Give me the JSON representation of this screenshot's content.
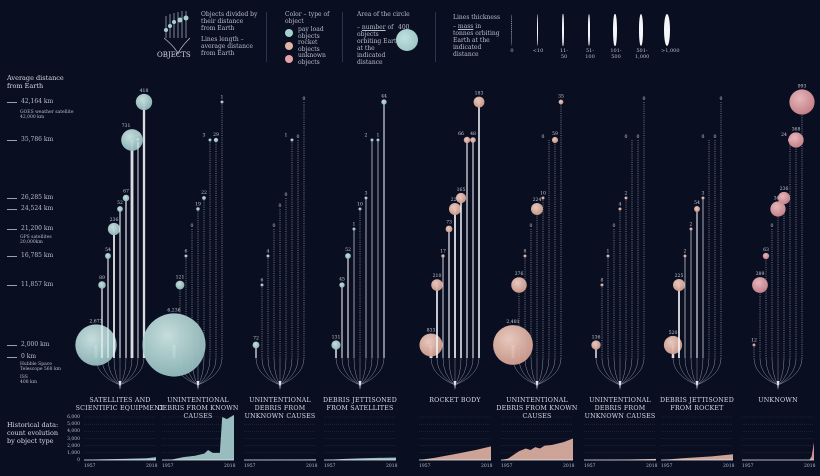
{
  "legend": {
    "objects_title": "OBJECTS",
    "objects_divided": "Objects divided by their distance from Earth",
    "lines_length": "Lines length – average distance from Earth",
    "color_title": "Color – type of object",
    "color_items": [
      {
        "label": "pay load objects",
        "color": "#a8cfd0"
      },
      {
        "label": "rocket objects",
        "color": "#e2b4a4"
      },
      {
        "label": "unknown objects",
        "color": "#e3a2a8"
      }
    ],
    "area_title": "Area of the circle",
    "area_text_number": "number",
    "area_text_rest": "of objects orbiting Earth at the indicated distance",
    "area_value": "400",
    "thickness_title": "Lines thickness",
    "thickness_mass": "mass",
    "thickness_rest": "in tonnes orbiting Earth at the indicated distance",
    "thickness_classes": [
      "0",
      "<10",
      "11-50",
      "51-100",
      "101-500",
      "501-1,000",
      ">1,000"
    ]
  },
  "y_axis": {
    "title": "Average distance from Earth",
    "ticks": [
      "42,164 km",
      "35,786 km",
      "26,285 km",
      "24,524 km",
      "21,200 km",
      "16,785 km",
      "11,857 km",
      "2,000 km",
      "0 km"
    ],
    "annotations": [
      {
        "label": "GOES weather satellite",
        "value": "42,000 km"
      },
      {
        "label": "GPS satellites",
        "value": "20,000km"
      },
      {
        "label": "Hubble Space Telescope 568 km"
      },
      {
        "label": "ISS",
        "value": "408 km"
      }
    ]
  },
  "groups": [
    {
      "name": "SATELLITES AND SCIENTIFIC EQUIPMENT",
      "kind": "payload",
      "counts": [
        2673,
        89,
        54,
        236,
        52,
        67,
        731,
        28,
        418
      ],
      "solid": [
        1,
        1,
        1,
        1,
        1,
        1,
        1,
        1,
        1
      ],
      "history": [
        [
          1957,
          0
        ],
        [
          1970,
          80
        ],
        [
          1990,
          150
        ],
        [
          2010,
          250
        ],
        [
          2018,
          400
        ]
      ]
    },
    {
      "name": "UNINTENTIONAL DEBRIS FROM KNOWN CAUSES",
      "kind": "payload",
      "counts": [
        6236,
        121,
        6,
        0,
        19,
        22,
        3,
        29,
        1
      ],
      "solid": [
        1,
        0,
        0,
        0,
        0,
        0,
        0,
        0,
        0
      ],
      "history": [
        [
          1957,
          0
        ],
        [
          1965,
          50
        ],
        [
          1975,
          400
        ],
        [
          1985,
          600
        ],
        [
          1993,
          900
        ],
        [
          1996,
          1400
        ],
        [
          2000,
          1000
        ],
        [
          2006,
          1000
        ],
        [
          2007,
          3500
        ],
        [
          2008,
          6000
        ],
        [
          2012,
          5700
        ],
        [
          2015,
          6000
        ],
        [
          2018,
          6300
        ]
      ]
    },
    {
      "name": "UNINTENTIONAL DEBRIS FROM UNKNOWN CAUSES",
      "kind": "payload",
      "counts": [
        72,
        6,
        4,
        0,
        0,
        0,
        1,
        0,
        0
      ],
      "solid": [
        1,
        0,
        0,
        0,
        0,
        0,
        0,
        0,
        0
      ],
      "history": [
        [
          1957,
          0
        ],
        [
          1980,
          30
        ],
        [
          2018,
          80
        ]
      ]
    },
    {
      "name": "DEBRIS JETTISONED FROM SATELLITES",
      "kind": "payload",
      "counts": [
        131,
        45,
        52,
        1,
        10,
        3,
        2,
        1,
        44
      ],
      "solid": [
        1,
        1,
        1,
        1,
        0,
        1,
        1,
        1,
        1
      ],
      "history": [
        [
          1957,
          0
        ],
        [
          1975,
          150
        ],
        [
          1990,
          250
        ],
        [
          2018,
          350
        ]
      ]
    },
    {
      "name": "ROCKET BODY",
      "kind": "rocket",
      "counts": [
        833,
        210,
        17,
        73,
        226,
        165,
        66,
        48,
        183
      ],
      "solid": [
        1,
        1,
        1,
        1,
        1,
        1,
        1,
        1,
        1
      ],
      "history": [
        [
          1957,
          0
        ],
        [
          1970,
          300
        ],
        [
          1990,
          900
        ],
        [
          2005,
          1400
        ],
        [
          2018,
          1900
        ]
      ]
    },
    {
      "name": "UNINTENTIONAL DEBRIS FROM KNOWN CAUSES",
      "kind": "rocket",
      "counts": [
        2481,
        376,
        8,
        0,
        224,
        10,
        0,
        59,
        35
      ],
      "solid": [
        1,
        0,
        0,
        0,
        0,
        0,
        0,
        0,
        0
      ],
      "history": [
        [
          1957,
          0
        ],
        [
          1963,
          200
        ],
        [
          1972,
          1200
        ],
        [
          1978,
          1600
        ],
        [
          1982,
          1400
        ],
        [
          1986,
          1800
        ],
        [
          1990,
          1600
        ],
        [
          1994,
          2000
        ],
        [
          2000,
          2100
        ],
        [
          2010,
          2500
        ],
        [
          2018,
          3000
        ]
      ]
    },
    {
      "name": "UNINTENTIONAL DEBRIS FROM UNKNOWN CAUSES",
      "kind": "rocket",
      "counts": [
        136,
        8,
        1,
        0,
        4,
        2,
        0,
        0,
        0
      ],
      "solid": [
        1,
        0,
        0,
        0,
        0,
        0,
        0,
        0,
        0
      ],
      "history": [
        [
          1957,
          0
        ],
        [
          1990,
          50
        ],
        [
          2018,
          150
        ]
      ]
    },
    {
      "name": "DEBRIS JETTISONED FROM ROCKET",
      "kind": "rocket",
      "counts": [
        520,
        225,
        2,
        2,
        54,
        3,
        0,
        0,
        0
      ],
      "solid": [
        1,
        1,
        1,
        1,
        1,
        1,
        0,
        0,
        0
      ],
      "history": [
        [
          1957,
          0
        ],
        [
          1975,
          250
        ],
        [
          2000,
          500
        ],
        [
          2018,
          800
        ]
      ]
    },
    {
      "name": "UNKNOWN",
      "kind": "unknown",
      "counts": [
        12,
        389,
        63,
        0,
        365,
        236,
        24,
        368,
        993
      ],
      "solid": [
        0,
        0,
        0,
        0,
        0,
        0,
        0,
        0,
        0
      ],
      "history": [
        [
          1957,
          0
        ],
        [
          2014,
          0
        ],
        [
          2016,
          500
        ],
        [
          2018,
          2500
        ]
      ]
    }
  ],
  "history": {
    "title": "Historical data: count evolution by object type",
    "y_ticks": [
      "6,000",
      "5,000",
      "4,000",
      "3,000",
      "2,000",
      "1,000",
      "0"
    ],
    "x_start": "1957",
    "x_end": "2018"
  },
  "colors": {
    "background": "#0a0e21",
    "payload": "#a8cfd0",
    "rocket": "#e2b4a4",
    "unknown": "#e3a2a8"
  }
}
